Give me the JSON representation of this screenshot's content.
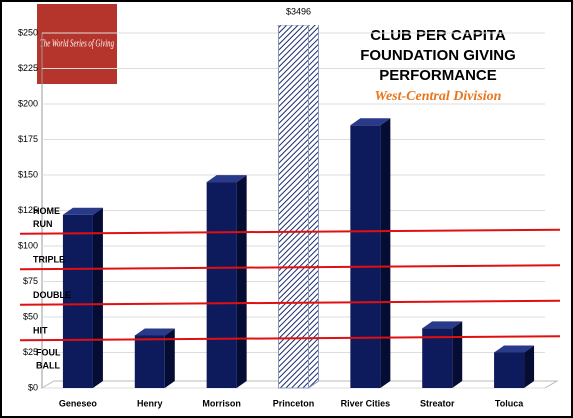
{
  "chart_data": {
    "type": "bar3d",
    "title": [
      "CLUB PER CAPITA",
      "FOUNDATION GIVING",
      "PERFORMANCE"
    ],
    "subtitle": "West-Central Division",
    "logo_text": "The World Series of Giving",
    "categories": [
      "Geneseo",
      "Henry",
      "Morrison",
      "Princeton",
      "River Cities",
      "Streator",
      "Toluca"
    ],
    "values": [
      122,
      37,
      145,
      3496,
      185,
      42,
      25
    ],
    "value_labels": [
      null,
      null,
      null,
      "$3496",
      null,
      null,
      null
    ],
    "color": "#0d1a5c",
    "highlight_index": 3,
    "ylim": [
      0,
      250
    ],
    "yticks": [
      {
        "value": 0,
        "label": "$0"
      },
      {
        "value": 25,
        "label": "$25"
      },
      {
        "value": 50,
        "label": "$50"
      },
      {
        "value": 75,
        "label": "$75"
      },
      {
        "value": 100,
        "label": "$100"
      },
      {
        "value": 125,
        "label": "$125"
      },
      {
        "value": 150,
        "label": "$150"
      },
      {
        "value": 175,
        "label": "$175"
      },
      {
        "value": 200,
        "label": "$200"
      },
      {
        "value": 225,
        "label": "$225"
      },
      {
        "value": 250,
        "label": "$250"
      }
    ],
    "grid": true,
    "reference_lines": [
      {
        "label": "HOME RUN",
        "value": 110,
        "color": "#e01010"
      },
      {
        "label": "TRIPLE",
        "value": 85,
        "color": "#e01010"
      },
      {
        "label": "DOUBLE",
        "value": 60,
        "color": "#e01010"
      },
      {
        "label": "HIT",
        "value": 35,
        "color": "#e01010"
      }
    ],
    "annotations": [
      {
        "label": "FOUL BALL",
        "value": 15
      }
    ]
  }
}
